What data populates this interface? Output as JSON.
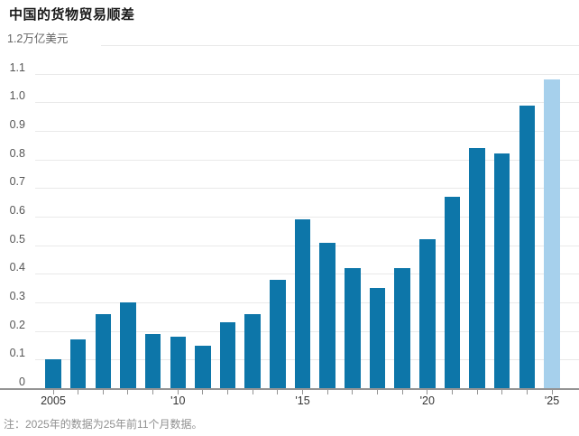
{
  "header": {
    "title": "中国的货物贸易顺差"
  },
  "footnote": "注：2025年的数据为25年前11个月数据。",
  "chart_data": {
    "type": "bar",
    "title": "中国的货物贸易顺差",
    "unit_top_label": "1.2万亿美元",
    "x": [
      2005,
      2006,
      2007,
      2008,
      2009,
      2010,
      2011,
      2012,
      2013,
      2014,
      2015,
      2016,
      2017,
      2018,
      2019,
      2020,
      2021,
      2022,
      2023,
      2024,
      2025
    ],
    "values": [
      0.1,
      0.17,
      0.26,
      0.3,
      0.19,
      0.18,
      0.15,
      0.23,
      0.26,
      0.38,
      0.59,
      0.51,
      0.42,
      0.35,
      0.42,
      0.52,
      0.67,
      0.84,
      0.82,
      0.99,
      1.08
    ],
    "y_ticks": [
      "0",
      "0.1",
      "0.2",
      "0.3",
      "0.4",
      "0.5",
      "0.6",
      "0.7",
      "0.8",
      "0.9",
      "1.0",
      "1.1"
    ],
    "x_tick_labels": [
      {
        "index": 0,
        "label": "2005"
      },
      {
        "index": 5,
        "label": "'10"
      },
      {
        "index": 10,
        "label": "'15"
      },
      {
        "index": 15,
        "label": "'20"
      },
      {
        "index": 20,
        "label": "'25"
      }
    ],
    "ylim": [
      0,
      1.2
    ],
    "grid": true,
    "legend": "none",
    "highlight_last_bar": true,
    "colors": {
      "bar": "#0d76a9",
      "highlight_bar": "#a6d0ec",
      "grid": "#e9e9e9",
      "axis": "#949494"
    }
  }
}
